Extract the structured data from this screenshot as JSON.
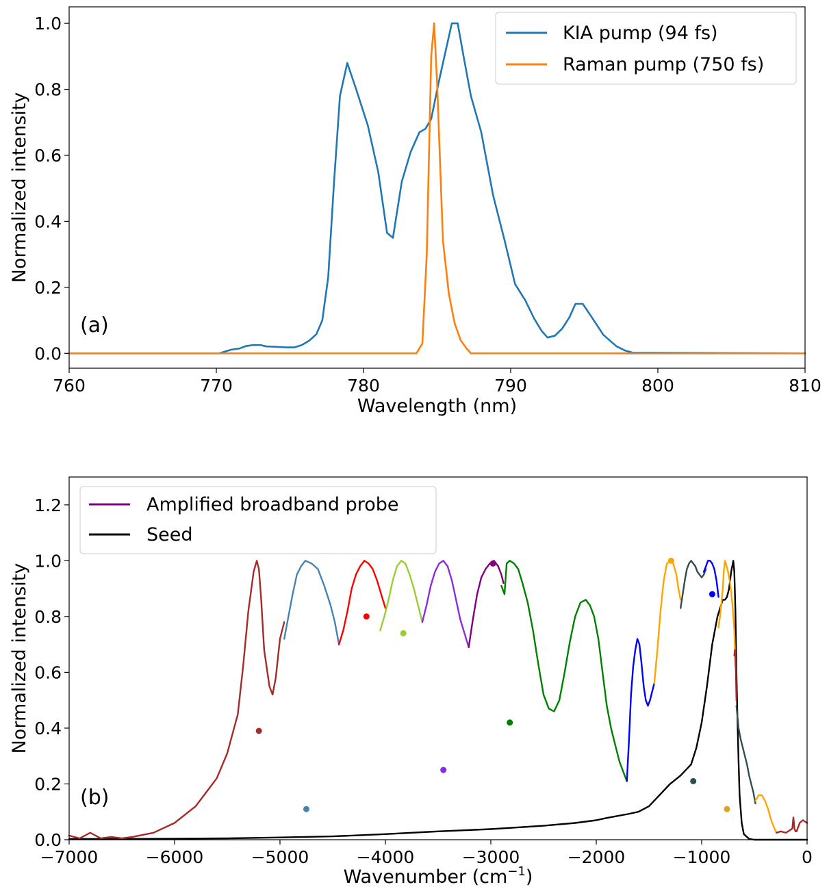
{
  "chart_data": [
    {
      "type": "line",
      "panel_label": "(a)",
      "xlabel": "Wavelength (nm)",
      "ylabel": "Normalized intensity",
      "xlim": [
        760,
        810
      ],
      "ylim": [
        -0.045,
        1.05
      ],
      "xticks": [
        760,
        770,
        780,
        790,
        800,
        810
      ],
      "xtick_labels": [
        "760",
        "770",
        "780",
        "790",
        "800",
        "810"
      ],
      "yticks": [
        0.0,
        0.2,
        0.4,
        0.6,
        0.8,
        1.0
      ],
      "ytick_labels": [
        "0.0",
        "0.2",
        "0.4",
        "0.6",
        "0.8",
        "1.0"
      ],
      "grid": false,
      "legend_position": "top-right",
      "series": [
        {
          "name": "KIA pump (94 fs)",
          "color": "#1f77b4",
          "x": [
            760,
            770.2,
            771,
            771.6,
            772,
            772.5,
            773,
            773.4,
            774,
            774.7,
            775.3,
            775.8,
            776.3,
            776.8,
            777.2,
            777.6,
            778.0,
            778.4,
            778.9,
            779.5,
            780.3,
            781.0,
            781.6,
            782.0,
            782.6,
            783.2,
            783.8,
            784.2,
            784.6,
            785.1,
            785.6,
            786.0,
            786.4,
            786.8,
            787.3,
            788.0,
            788.8,
            789.6,
            790.3,
            791.0,
            791.6,
            792.1,
            792.5,
            793.0,
            793.5,
            794.0,
            794.4,
            794.9,
            795.5,
            796.3,
            797.2,
            797.8,
            798.3,
            810
          ],
          "y": [
            0,
            0,
            0.011,
            0.015,
            0.022,
            0.025,
            0.025,
            0.021,
            0.02,
            0.018,
            0.018,
            0.025,
            0.038,
            0.058,
            0.1,
            0.23,
            0.52,
            0.78,
            0.88,
            0.8,
            0.69,
            0.55,
            0.365,
            0.35,
            0.52,
            0.61,
            0.67,
            0.68,
            0.71,
            0.82,
            0.92,
            1.0,
            1.0,
            0.9,
            0.78,
            0.67,
            0.48,
            0.34,
            0.21,
            0.16,
            0.105,
            0.068,
            0.048,
            0.053,
            0.075,
            0.11,
            0.15,
            0.15,
            0.11,
            0.056,
            0.021,
            0.008,
            0.002,
            0
          ]
        },
        {
          "name": "Raman pump (750 fs)",
          "color": "#ff7f0e",
          "x": [
            760,
            783.6,
            784.0,
            784.3,
            784.6,
            784.8,
            785.0,
            785.4,
            785.8,
            786.2,
            786.6,
            787.0,
            787.3,
            810
          ],
          "y": [
            0,
            0,
            0.03,
            0.3,
            0.9,
            1.0,
            0.82,
            0.34,
            0.18,
            0.09,
            0.04,
            0.015,
            0.0,
            0
          ]
        }
      ]
    },
    {
      "type": "line",
      "panel_label": "(b)",
      "xlabel": "Wavenumber (cm",
      "xlabel_sup": "−1",
      "xlabel_end": ")",
      "ylabel": "Normalized intensity",
      "xlim": [
        -7000,
        0
      ],
      "ylim": [
        0,
        1.3
      ],
      "xticks": [
        -7000,
        -6000,
        -5000,
        -4000,
        -3000,
        -2000,
        -1000,
        0
      ],
      "xtick_labels": [
        "−7000",
        "−6000",
        "−5000",
        "−4000",
        "−3000",
        "−2000",
        "−1000",
        "0"
      ],
      "yticks": [
        0.0,
        0.2,
        0.4,
        0.6,
        0.8,
        1.0,
        1.2
      ],
      "ytick_labels": [
        "0.0",
        "0.2",
        "0.4",
        "0.6",
        "0.8",
        "1.0",
        "1.2"
      ],
      "grid": false,
      "legend_position": "top-left",
      "legend": [
        {
          "label": "Amplified broadband probe",
          "color": "#800080"
        },
        {
          "label": "Seed",
          "color": "#000000"
        }
      ],
      "series": [
        {
          "color": "#000000",
          "x": [
            -7000,
            -6500,
            -6000,
            -5500,
            -5000,
            -4500,
            -4000,
            -3500,
            -3000,
            -2500,
            -2200,
            -2000,
            -1900,
            -1800,
            -1700,
            -1600,
            -1500,
            -1400,
            -1300,
            -1200,
            -1100,
            -1050,
            -1000,
            -950,
            -900,
            -850,
            -800,
            -780,
            -760,
            -740,
            -720,
            -700,
            -690,
            -680,
            -670,
            -660,
            -650,
            -640,
            -620,
            -600,
            -550,
            -500,
            0
          ],
          "y": [
            0.003,
            0.003,
            0.004,
            0.005,
            0.008,
            0.012,
            0.02,
            0.03,
            0.038,
            0.05,
            0.06,
            0.07,
            0.078,
            0.085,
            0.092,
            0.1,
            0.12,
            0.16,
            0.2,
            0.23,
            0.27,
            0.33,
            0.42,
            0.55,
            0.7,
            0.8,
            0.86,
            0.86,
            0.87,
            0.9,
            0.96,
            1.0,
            0.96,
            0.82,
            0.6,
            0.42,
            0.28,
            0.16,
            0.06,
            0.02,
            0.003,
            0.0,
            0.0
          ]
        },
        {
          "color": "#a52a2a",
          "x": [
            -7000,
            -6900,
            -6800,
            -6700,
            -6600,
            -6500,
            -6400,
            -6200,
            -6000,
            -5800,
            -5600,
            -5500,
            -5400,
            -5350,
            -5300,
            -5250,
            -5220,
            -5200,
            -5180,
            -5150,
            -5100,
            -5070,
            -5040,
            -5000,
            -4960
          ],
          "y": [
            0.015,
            0.005,
            0.025,
            0.005,
            0.01,
            0.005,
            0.01,
            0.025,
            0.06,
            0.12,
            0.22,
            0.31,
            0.45,
            0.62,
            0.82,
            0.96,
            1.0,
            0.97,
            0.87,
            0.68,
            0.55,
            0.52,
            0.58,
            0.72,
            0.78
          ]
        },
        {
          "color": "#4682b4",
          "x": [
            -4960,
            -4920,
            -4880,
            -4840,
            -4800,
            -4760,
            -4700,
            -4640,
            -4580,
            -4520,
            -4480,
            -4440
          ],
          "y": [
            0.72,
            0.8,
            0.88,
            0.95,
            0.98,
            1.0,
            0.99,
            0.97,
            0.91,
            0.84,
            0.78,
            0.7
          ]
        },
        {
          "color": "#ff0000",
          "x": [
            -4440,
            -4400,
            -4360,
            -4320,
            -4280,
            -4240,
            -4200,
            -4160,
            -4120,
            -4080,
            -4040,
            -4000
          ],
          "y": [
            0.7,
            0.75,
            0.82,
            0.9,
            0.95,
            0.98,
            1.0,
            0.99,
            0.97,
            0.93,
            0.88,
            0.83
          ]
        },
        {
          "color": "#9acd32",
          "x": [
            -4050,
            -4010,
            -3970,
            -3930,
            -3890,
            -3850,
            -3810,
            -3770,
            -3730,
            -3690,
            -3650
          ],
          "y": [
            0.75,
            0.8,
            0.86,
            0.93,
            0.98,
            1.0,
            0.99,
            0.95,
            0.9,
            0.84,
            0.78
          ]
        },
        {
          "color": "#8a2be2",
          "x": [
            -3650,
            -3610,
            -3570,
            -3530,
            -3490,
            -3450,
            -3410,
            -3370,
            -3330,
            -3290,
            -3250,
            -3210
          ],
          "y": [
            0.78,
            0.84,
            0.91,
            0.96,
            0.99,
            1.0,
            0.98,
            0.93,
            0.86,
            0.79,
            0.74,
            0.69
          ]
        },
        {
          "color": "#800080",
          "x": [
            -3210,
            -3170,
            -3130,
            -3090,
            -3050,
            -3010,
            -2970,
            -2930,
            -2900,
            -2880
          ],
          "y": [
            0.69,
            0.79,
            0.88,
            0.94,
            0.97,
            0.99,
            1.0,
            0.98,
            0.95,
            0.92
          ]
        },
        {
          "color": "#008000",
          "x": [
            -2900,
            -2870,
            -2850,
            -2820,
            -2780,
            -2740,
            -2700,
            -2650,
            -2600,
            -2550,
            -2500,
            -2450,
            -2400,
            -2350,
            -2300,
            -2250,
            -2200,
            -2150,
            -2100,
            -2060,
            -2020,
            -1980,
            -1940,
            -1900,
            -1860,
            -1820,
            -1780,
            -1740,
            -1710
          ],
          "y": [
            0.91,
            0.88,
            0.99,
            1.0,
            0.99,
            0.97,
            0.92,
            0.85,
            0.75,
            0.63,
            0.52,
            0.47,
            0.46,
            0.5,
            0.6,
            0.71,
            0.8,
            0.85,
            0.86,
            0.84,
            0.8,
            0.72,
            0.6,
            0.48,
            0.4,
            0.34,
            0.28,
            0.24,
            0.21
          ]
        },
        {
          "color": "#0000ff",
          "x": [
            -1710,
            -1690,
            -1670,
            -1650,
            -1630,
            -1610,
            -1590,
            -1570,
            -1550,
            -1530,
            -1510,
            -1490,
            -1470,
            -1450
          ],
          "y": [
            0.21,
            0.35,
            0.52,
            0.62,
            0.68,
            0.72,
            0.7,
            0.63,
            0.55,
            0.5,
            0.48,
            0.5,
            0.53,
            0.56
          ]
        },
        {
          "color": "#ffa500",
          "x": [
            -1450,
            -1420,
            -1390,
            -1360,
            -1330,
            -1300,
            -1270,
            -1240,
            -1220,
            -1200
          ],
          "y": [
            0.56,
            0.68,
            0.82,
            0.93,
            0.99,
            1.0,
            0.99,
            0.95,
            0.9,
            0.86
          ]
        },
        {
          "color": "#2f4f4f",
          "x": [
            -1200,
            -1180,
            -1160,
            -1140,
            -1120,
            -1100,
            -1080,
            -1060,
            -1040,
            -1020,
            -1000,
            -980,
            -960
          ],
          "y": [
            0.83,
            0.88,
            0.93,
            0.97,
            0.99,
            1.0,
            0.99,
            0.98,
            0.96,
            0.95,
            0.94,
            0.95,
            0.97
          ]
        },
        {
          "color": "#0000ff",
          "x": [
            -980,
            -960,
            -940,
            -920,
            -900,
            -880,
            -860,
            -840
          ],
          "y": [
            0.96,
            0.98,
            1.0,
            1.0,
            0.99,
            0.97,
            0.93,
            0.87
          ]
        },
        {
          "color": "#ffa500",
          "x": [
            -840,
            -820,
            -800,
            -790,
            -780,
            -770,
            -750,
            -730,
            -710,
            -690,
            -680
          ],
          "y": [
            0.76,
            0.82,
            0.9,
            0.96,
            1.0,
            0.99,
            0.96,
            0.92,
            0.85,
            0.75,
            0.62
          ]
        },
        {
          "color": "#a52a2a",
          "x": [
            -690,
            -685,
            -680,
            -675,
            -670
          ],
          "y": [
            0.66,
            0.68,
            0.65,
            0.6,
            0.5
          ]
        },
        {
          "color": "#2f4f4f",
          "x": [
            -670,
            -650,
            -630,
            -610,
            -590,
            -570,
            -550,
            -530,
            -510,
            -490
          ],
          "y": [
            0.48,
            0.4,
            0.36,
            0.33,
            0.3,
            0.27,
            0.23,
            0.2,
            0.17,
            0.13
          ]
        },
        {
          "color": "#ffa500",
          "x": [
            -490,
            -460,
            -430,
            -400,
            -370,
            -340,
            -310,
            -290
          ],
          "y": [
            0.14,
            0.16,
            0.16,
            0.14,
            0.11,
            0.07,
            0.04,
            0.025
          ]
        },
        {
          "color": "#a52a2a",
          "x": [
            -290,
            -250,
            -200,
            -160,
            -140,
            -130,
            -120,
            -110,
            -100,
            -70,
            -40,
            0
          ],
          "y": [
            0.025,
            0.03,
            0.025,
            0.035,
            0.04,
            0.08,
            0.04,
            0.03,
            0.03,
            0.06,
            0.07,
            0.06
          ]
        }
      ],
      "markers": [
        {
          "x": -5200,
          "y": 0.39,
          "color": "#a52a2a"
        },
        {
          "x": -4750,
          "y": 0.11,
          "color": "#4682b4"
        },
        {
          "x": -4180,
          "y": 0.8,
          "color": "#ff0000"
        },
        {
          "x": -3830,
          "y": 0.74,
          "color": "#9acd32"
        },
        {
          "x": -3450,
          "y": 0.25,
          "color": "#8a2be2"
        },
        {
          "x": -2980,
          "y": 0.99,
          "color": "#800080"
        },
        {
          "x": -2820,
          "y": 0.42,
          "color": "#008000"
        },
        {
          "x": -1290,
          "y": 1.0,
          "color": "#ffa500"
        },
        {
          "x": -1080,
          "y": 0.21,
          "color": "#2f4f4f"
        },
        {
          "x": -900,
          "y": 0.88,
          "color": "#0000ff"
        },
        {
          "x": -760,
          "y": 0.11,
          "color": "#daa520"
        }
      ]
    }
  ]
}
